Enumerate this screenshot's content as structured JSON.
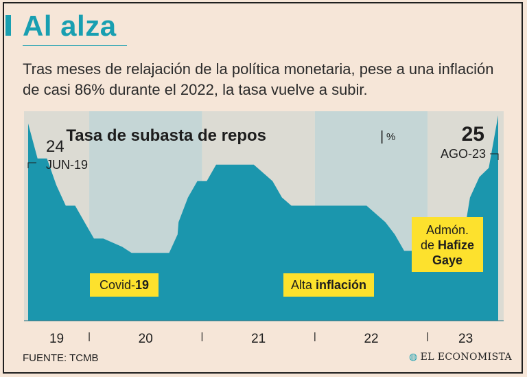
{
  "header": {
    "title": "Al alza",
    "subtitle": "Tras meses de relajación de la política monetaria, pese a una inflación de casi 86% durante el 2022, la tasa vuelve a subir."
  },
  "colors": {
    "accent": "#199fb1",
    "area": "#1b96ad",
    "band_light": "#dcdbd3",
    "band_dark": "#c5d6d6",
    "label_bg": "#fde12d"
  },
  "chart_data": {
    "type": "area",
    "title": "Tasa de subasta de repos",
    "unit": "%",
    "xlabel": "",
    "ylabel": "",
    "ylim": [
      0,
      25.5
    ],
    "year_ticks": [
      "19",
      "20",
      "21",
      "22",
      "23"
    ],
    "x_index_range": [
      0,
      50
    ],
    "year_boundaries": [
      6.5,
      18.5,
      30.5,
      42.5
    ],
    "x": [
      0,
      1,
      2,
      3,
      4,
      5,
      6,
      7,
      8,
      9,
      10,
      11,
      12,
      13,
      14,
      15,
      15.9,
      16,
      17,
      18,
      19,
      20,
      21,
      22,
      23,
      24,
      25,
      26,
      27,
      28,
      29,
      30,
      31,
      32,
      33,
      34,
      35,
      36,
      37,
      38,
      39,
      40,
      41,
      42,
      43,
      44,
      45,
      46,
      47,
      48,
      49,
      50
    ],
    "values": [
      24,
      19.75,
      19.75,
      16.5,
      14,
      14,
      12,
      10,
      10,
      9.5,
      9,
      8.25,
      8.25,
      8.25,
      8.25,
      8.25,
      10.5,
      12,
      15,
      17,
      17,
      19,
      19,
      19,
      19,
      19,
      18,
      17,
      15,
      14,
      14,
      14,
      14,
      14,
      14,
      14,
      14,
      14,
      13,
      12,
      10.5,
      8.5,
      8.5,
      8.5,
      8,
      8,
      8,
      8,
      15,
      17.5,
      18.6,
      25
    ],
    "start_annotation": {
      "value": "24",
      "date": "JUN-19"
    },
    "end_annotation": {
      "value": "25",
      "date": "AGO-23"
    },
    "callouts": [
      {
        "text_normal": "Covid-",
        "text_bold": "19"
      },
      {
        "text_normal": "Alta ",
        "text_bold": "inflación"
      },
      {
        "line1": "Admón.",
        "line2_normal": "de ",
        "line2_bold": "Hafize",
        "line3": "Gaye"
      }
    ]
  },
  "footer": {
    "source": "FUENTE: TCMB",
    "logo": "EL ECONOMISTA"
  }
}
